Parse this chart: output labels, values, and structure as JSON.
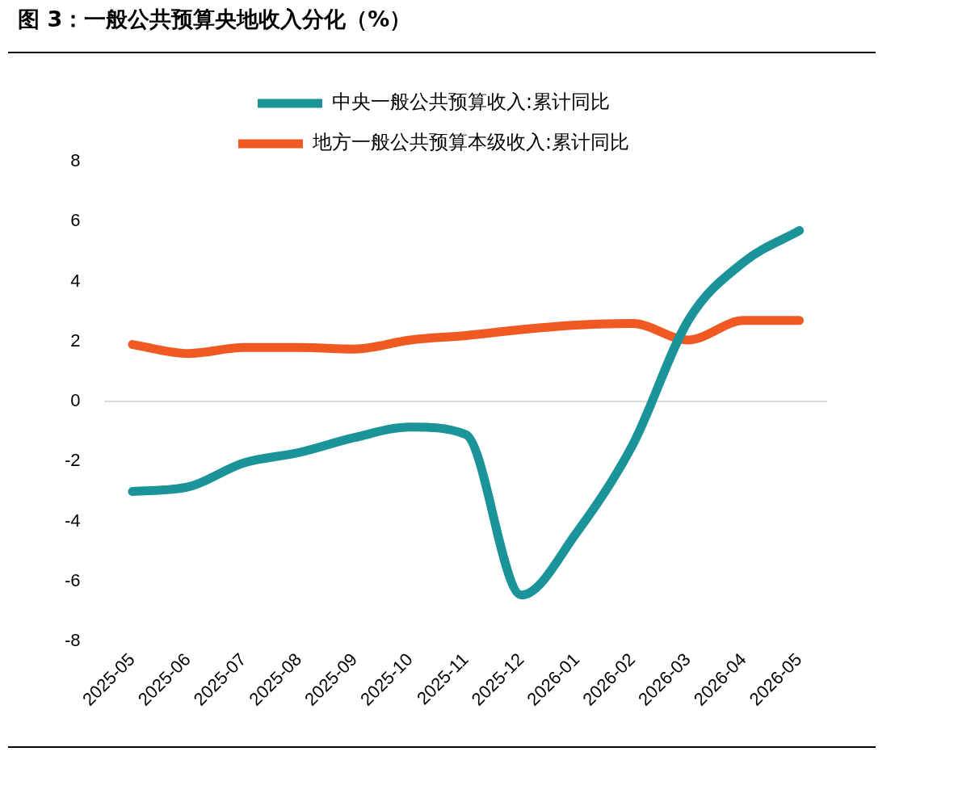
{
  "chart_data": {
    "type": "line",
    "title": "图 3：一般公共预算央地收入分化（%）",
    "categories": [
      "2025-05",
      "2025-06",
      "2025-07",
      "2025-08",
      "2025-09",
      "2025-10",
      "2025-11",
      "2025-12",
      "2026-01",
      "2026-02",
      "2026-03",
      "2026-04",
      "2026-05"
    ],
    "series": [
      {
        "name": "中央一般公共预算收入:累计同比",
        "color": "#1a9399",
        "values": [
          -3.0,
          -2.85,
          -2.05,
          -1.7,
          -1.2,
          -0.85,
          -1.1,
          -6.45,
          -4.35,
          -1.45,
          2.7,
          4.65,
          5.7
        ]
      },
      {
        "name": "地方一般公共预算本级收入:累计同比",
        "color": "#f05a22",
        "values": [
          1.9,
          1.6,
          1.8,
          1.8,
          1.75,
          2.05,
          2.2,
          2.4,
          2.55,
          2.6,
          2.05,
          2.7,
          2.7
        ]
      }
    ],
    "ylim": [
      -8,
      8
    ],
    "yticks": [
      -8,
      -6,
      -4,
      -2,
      0,
      2,
      4,
      6,
      8
    ],
    "grid": false,
    "ref_lines": [
      {
        "axis": "y",
        "value": 0,
        "color": "#d9d9d9"
      }
    ],
    "legend": "top",
    "marker": "none",
    "line_style": "solid"
  }
}
